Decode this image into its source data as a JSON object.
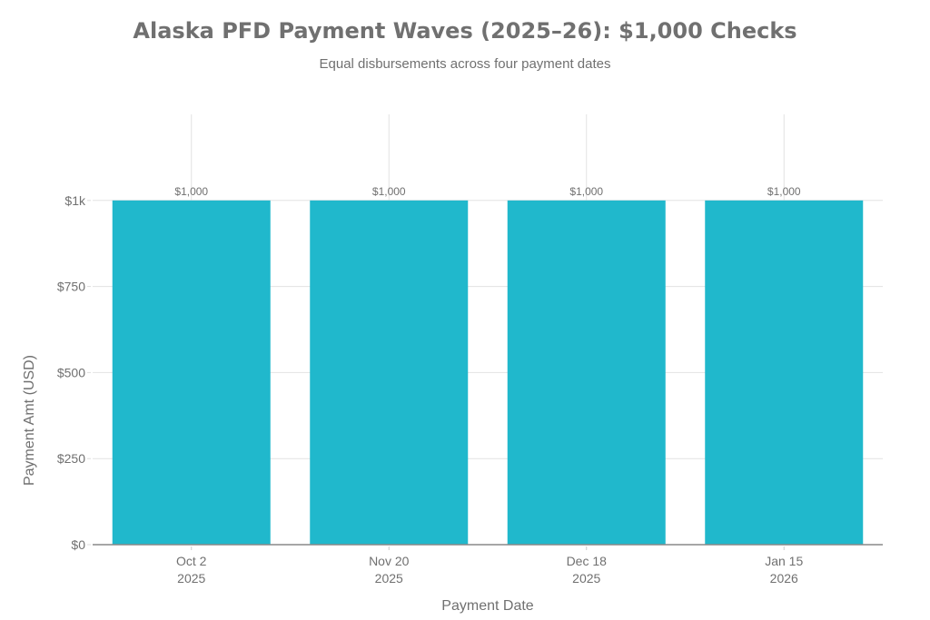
{
  "chart_data": {
    "type": "bar",
    "title": "Alaska PFD Payment Waves (2025–26): $1,000 Checks",
    "subtitle": "Equal disbursements across four payment dates",
    "xlabel": "Payment Date",
    "ylabel": "Payment Amt (USD)",
    "categories": [
      [
        "Oct 2",
        "2025"
      ],
      [
        "Nov 20",
        "2025"
      ],
      [
        "Dec 18",
        "2025"
      ],
      [
        "Jan 15",
        "2026"
      ]
    ],
    "values": [
      1000,
      1000,
      1000,
      1000
    ],
    "data_labels": [
      "$1,000",
      "$1,000",
      "$1,000",
      "$1,000"
    ],
    "ylim": [
      0,
      1250
    ],
    "yticks": [
      0,
      250,
      500,
      750,
      1000
    ],
    "ytick_labels": [
      "$0",
      "$250",
      "$500",
      "$750",
      "$1k"
    ],
    "grid": true,
    "bar_color": "#20b8cc"
  }
}
